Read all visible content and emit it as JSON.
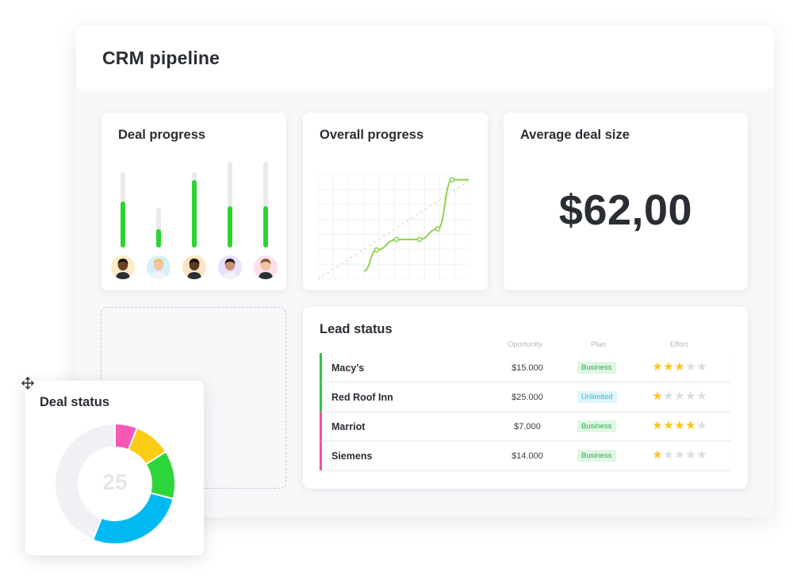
{
  "window": {
    "title": "CRM pipeline"
  },
  "deal_progress": {
    "title": "Deal progress",
    "bars": [
      {
        "person": "person-1",
        "fill": 0.61
      },
      {
        "person": "person-2",
        "fill": 0.46
      },
      {
        "person": "person-3",
        "fill": 0.89
      },
      {
        "person": "person-4",
        "fill": 0.48
      },
      {
        "person": "person-5",
        "fill": 0.48
      }
    ],
    "accent_color": "#2ad52f"
  },
  "overall_progress": {
    "title": "Overall progress",
    "chart_data": {
      "type": "line",
      "x": [
        0,
        1,
        2,
        3,
        4,
        5,
        6
      ],
      "values": [
        0.08,
        0.28,
        0.38,
        0.38,
        0.48,
        0.95,
        0.95
      ],
      "trend": [
        0.0,
        0.95
      ],
      "grid": true,
      "color": "#8fd14f"
    }
  },
  "average_deal_size": {
    "title": "Average deal size",
    "value": "$62,00"
  },
  "lead_status": {
    "title": "Lead status",
    "columns": {
      "opportunity": "Oportunity",
      "plan": "Plan",
      "effort": "Effort"
    },
    "rows": [
      {
        "name": "Macy’s",
        "amount": "$15.000",
        "plan": "Business",
        "plan_kind": "business",
        "effort": 3,
        "accent": "#2fc44a"
      },
      {
        "name": "Red Roof Inn",
        "amount": "$25.000",
        "plan": "Unlimited",
        "plan_kind": "unlimited",
        "effort": 1,
        "accent": "#2fc44a"
      },
      {
        "name": "Marriot",
        "amount": "$7.000",
        "plan": "Business",
        "plan_kind": "business",
        "effort": 4,
        "accent": "#f24f9e"
      },
      {
        "name": "Siemens",
        "amount": "$14.000",
        "plan": "Business",
        "plan_kind": "business",
        "effort": 1,
        "accent": "#f24f9e"
      }
    ],
    "max_effort": 5
  },
  "deal_status": {
    "title": "Deal status",
    "center_value": "25",
    "chart_data": {
      "type": "pie",
      "slices": [
        {
          "value": 6,
          "color": "#f759b4"
        },
        {
          "value": 10,
          "color": "#fbcc13"
        },
        {
          "value": 13,
          "color": "#2ed53a"
        },
        {
          "value": 27,
          "color": "#00b9f2"
        },
        {
          "value": 44,
          "color": "#eff1f4"
        }
      ]
    }
  },
  "icons": {
    "move": "move-arrows-icon"
  }
}
